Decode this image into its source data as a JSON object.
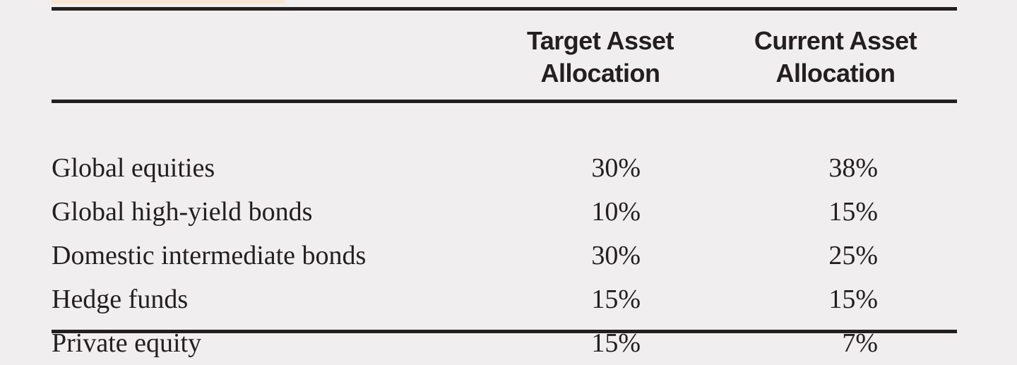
{
  "colors": {
    "page_background": "#f0eeee",
    "accent_strip": "#f6e5d3",
    "rule": "#231f20",
    "text": "#231f20"
  },
  "table": {
    "columns": [
      {
        "label": ""
      },
      {
        "label": "Target Asset Allocation"
      },
      {
        "label": "Current Asset Allocation"
      }
    ],
    "rows": [
      {
        "label": "Global equities",
        "target": "30%",
        "current": "38%"
      },
      {
        "label": "Global high-yield bonds",
        "target": "10%",
        "current": "15%"
      },
      {
        "label": "Domestic intermediate bonds",
        "target": "30%",
        "current": "25%"
      },
      {
        "label": "Hedge funds",
        "target": "15%",
        "current": "15%"
      },
      {
        "label": "Private equity",
        "target": "15%",
        "current": "7%"
      }
    ]
  },
  "chart_data": {
    "type": "table",
    "columns": [
      "",
      "Target Asset Allocation",
      "Current Asset Allocation"
    ],
    "rows": [
      [
        "Global equities",
        "30%",
        "38%"
      ],
      [
        "Global high-yield bonds",
        "10%",
        "15%"
      ],
      [
        "Domestic intermediate bonds",
        "30%",
        "25%"
      ],
      [
        "Hedge funds",
        "15%",
        "15%"
      ],
      [
        "Private equity",
        "15%",
        "7%"
      ]
    ]
  }
}
